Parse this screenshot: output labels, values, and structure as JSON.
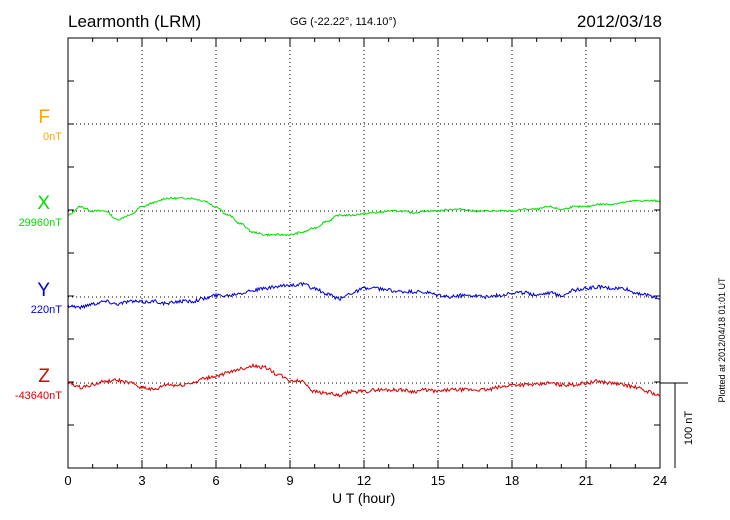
{
  "header": {
    "station": "Learmonth (LRM)",
    "coordinates": "GG (-22.22°, 114.10°)",
    "date": "2012/03/18"
  },
  "footer": {
    "plotted": "Plotted at 2012/04/18 01:01 UT"
  },
  "colors": {
    "F": "#ffa500",
    "X": "#00dd00",
    "Y": "#0000dd",
    "Z": "#dd0000"
  },
  "chart_data": {
    "type": "line",
    "xlabel": "U T (hour)",
    "xlim": [
      0,
      24
    ],
    "xticks": [
      "0",
      "3",
      "6",
      "9",
      "12",
      "15",
      "18",
      "21",
      "24"
    ],
    "scale_bar": "100 nT",
    "components": [
      {
        "name": "F",
        "baseline": "0nT"
      },
      {
        "name": "X",
        "baseline": "29960nT"
      },
      {
        "name": "Y",
        "baseline": "220nT"
      },
      {
        "name": "Z",
        "baseline": "-43640nT"
      }
    ],
    "series": [
      {
        "name": "X",
        "x": [
          0,
          0.5,
          1,
          1.5,
          2,
          2.5,
          3,
          3.5,
          4,
          4.5,
          5,
          5.5,
          6,
          6.5,
          7,
          7.5,
          8,
          8.5,
          9,
          9.5,
          10,
          10.5,
          11,
          11.5,
          12,
          12.5,
          13,
          13.5,
          14,
          14.5,
          15,
          15.5,
          16,
          16.5,
          17,
          17.5,
          18,
          18.5,
          19,
          19.5,
          20,
          20.5,
          21,
          21.5,
          22,
          22.5,
          23,
          23.5,
          24
        ],
        "y": [
          -5,
          5,
          0,
          0,
          -10,
          -5,
          5,
          10,
          15,
          15,
          15,
          12,
          5,
          -5,
          -15,
          -25,
          -28,
          -28,
          -28,
          -25,
          -20,
          -12,
          -5,
          -5,
          -3,
          -2,
          0,
          0,
          -2,
          0,
          0,
          2,
          2,
          0,
          0,
          0,
          0,
          2,
          2,
          5,
          2,
          5,
          5,
          8,
          8,
          10,
          12,
          12,
          12
        ]
      },
      {
        "name": "Y",
        "x": [
          0,
          0.5,
          1,
          1.5,
          2,
          2.5,
          3,
          3.5,
          4,
          4.5,
          5,
          5.5,
          6,
          6.5,
          7,
          7.5,
          8,
          8.5,
          9,
          9.5,
          10,
          10.5,
          11,
          11.5,
          12,
          12.5,
          13,
          13.5,
          14,
          14.5,
          15,
          15.5,
          16,
          16.5,
          17,
          17.5,
          18,
          18.5,
          19,
          19.5,
          20,
          20.5,
          21,
          21.5,
          22,
          22.5,
          23,
          23.5,
          24
        ],
        "y": [
          -10,
          -12,
          -8,
          -5,
          -8,
          -5,
          -6,
          -5,
          -8,
          -5,
          -5,
          -2,
          2,
          2,
          5,
          8,
          10,
          12,
          14,
          15,
          10,
          3,
          -2,
          5,
          10,
          10,
          8,
          6,
          6,
          5,
          2,
          0,
          2,
          2,
          0,
          2,
          5,
          5,
          3,
          5,
          2,
          8,
          10,
          12,
          10,
          10,
          5,
          2,
          -2
        ]
      },
      {
        "name": "Z",
        "x": [
          0,
          0.5,
          1,
          1.5,
          2,
          2.5,
          3,
          3.5,
          4,
          4.5,
          5,
          5.5,
          6,
          6.5,
          7,
          7.5,
          8,
          8.5,
          9,
          9.5,
          10,
          10.5,
          11,
          11.5,
          12,
          12.5,
          13,
          13.5,
          14,
          14.5,
          15,
          15.5,
          16,
          16.5,
          17,
          17.5,
          18,
          18.5,
          19,
          19.5,
          20,
          20.5,
          21,
          21.5,
          22,
          22.5,
          23,
          23.5,
          24
        ],
        "y": [
          0,
          -5,
          -2,
          2,
          3,
          0,
          -5,
          -8,
          -2,
          -3,
          0,
          5,
          8,
          12,
          17,
          20,
          18,
          10,
          3,
          2,
          -10,
          -12,
          -15,
          -10,
          -10,
          -8,
          -8,
          -8,
          -10,
          -8,
          -10,
          -8,
          -8,
          -8,
          -8,
          -5,
          -2,
          -2,
          -2,
          0,
          -2,
          -2,
          0,
          2,
          0,
          -2,
          -5,
          -10,
          -15
        ]
      }
    ]
  }
}
